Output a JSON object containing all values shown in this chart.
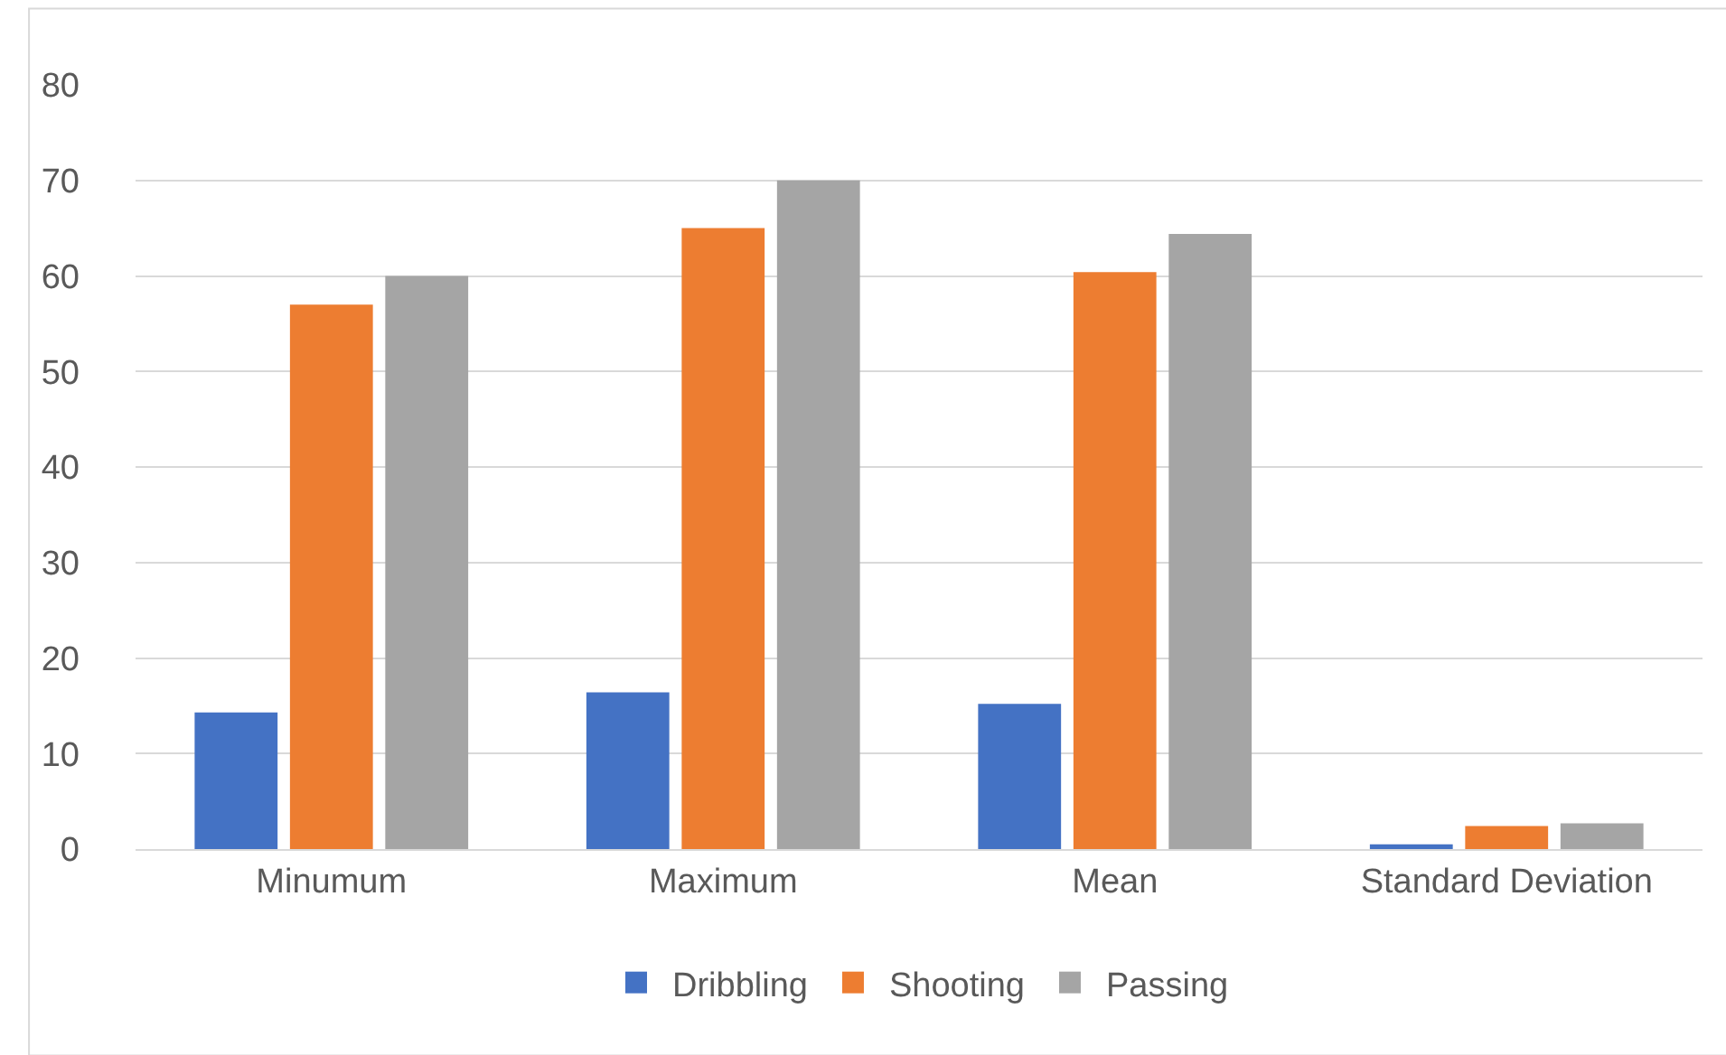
{
  "chart_data": {
    "type": "bar",
    "categories": [
      "Minumum",
      "Maximum",
      "Mean",
      "Standard Deviation"
    ],
    "series": [
      {
        "name": "Dribbling",
        "color": "#4472c4",
        "values": [
          14.3,
          16.4,
          15.2,
          0.5
        ]
      },
      {
        "name": "Shooting",
        "color": "#ed7d31",
        "values": [
          57,
          65,
          60.4,
          2.4
        ]
      },
      {
        "name": "Passing",
        "color": "#a5a5a5",
        "values": [
          60,
          70,
          64.4,
          2.7
        ]
      }
    ],
    "ylim": [
      0,
      80
    ],
    "yticks": [
      0,
      10,
      20,
      30,
      40,
      50,
      60,
      70,
      80
    ],
    "grid": "y",
    "legend": "bottom"
  }
}
